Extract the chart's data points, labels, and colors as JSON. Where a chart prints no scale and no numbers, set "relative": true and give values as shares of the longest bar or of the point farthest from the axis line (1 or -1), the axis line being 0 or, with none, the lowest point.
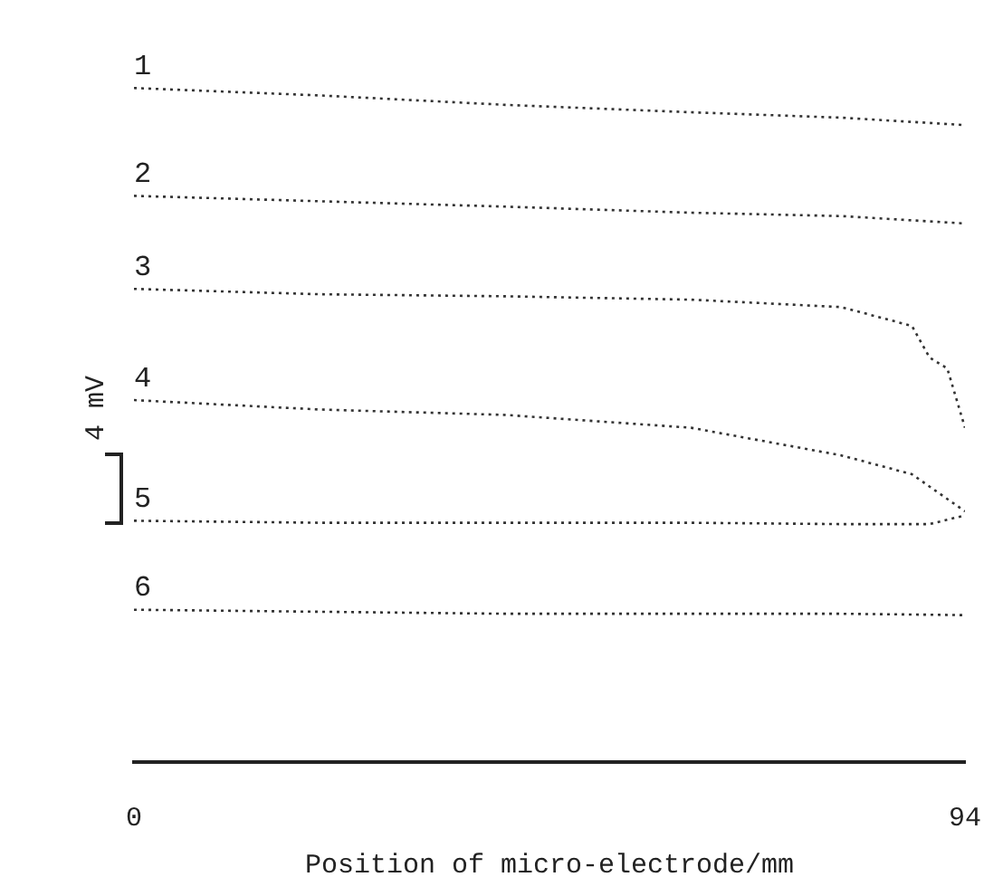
{
  "chart_data": {
    "type": "line",
    "relative": true,
    "xlabel": "Position of micro-electrode/mm",
    "ylabel": "4 mV",
    "xlim": [
      0,
      94
    ],
    "xticks": [
      0,
      94
    ],
    "grid": false,
    "legend": false,
    "marker": "none",
    "line_style": "dotted",
    "series": [
      {
        "name": "1",
        "color": "#333333",
        "x": [
          0,
          21,
          42,
          63,
          80,
          94
        ],
        "values": [
          1.0,
          0.989,
          0.975,
          0.964,
          0.956,
          0.945
        ]
      },
      {
        "name": "2",
        "color": "#333333",
        "x": [
          0,
          21,
          42,
          63,
          80,
          94
        ],
        "values": [
          0.84,
          0.832,
          0.824,
          0.815,
          0.81,
          0.799
        ]
      },
      {
        "name": "3",
        "color": "#333333",
        "x": [
          0,
          21,
          42,
          63,
          80,
          88,
          90,
          92,
          94
        ],
        "values": [
          0.702,
          0.694,
          0.691,
          0.686,
          0.675,
          0.647,
          0.6,
          0.584,
          0.496
        ]
      },
      {
        "name": "4",
        "color": "#333333",
        "x": [
          0,
          21,
          42,
          63,
          80,
          88,
          94
        ],
        "values": [
          0.537,
          0.523,
          0.515,
          0.496,
          0.455,
          0.427,
          0.372
        ]
      },
      {
        "name": "5",
        "color": "#333333",
        "x": [
          0,
          21,
          42,
          63,
          80,
          90,
          94
        ],
        "values": [
          0.358,
          0.355,
          0.355,
          0.355,
          0.353,
          0.353,
          0.366
        ]
      },
      {
        "name": "6",
        "color": "#333333",
        "x": [
          0,
          21,
          42,
          63,
          80,
          94
        ],
        "values": [
          0.226,
          0.223,
          0.22,
          0.22,
          0.22,
          0.218
        ]
      }
    ]
  }
}
